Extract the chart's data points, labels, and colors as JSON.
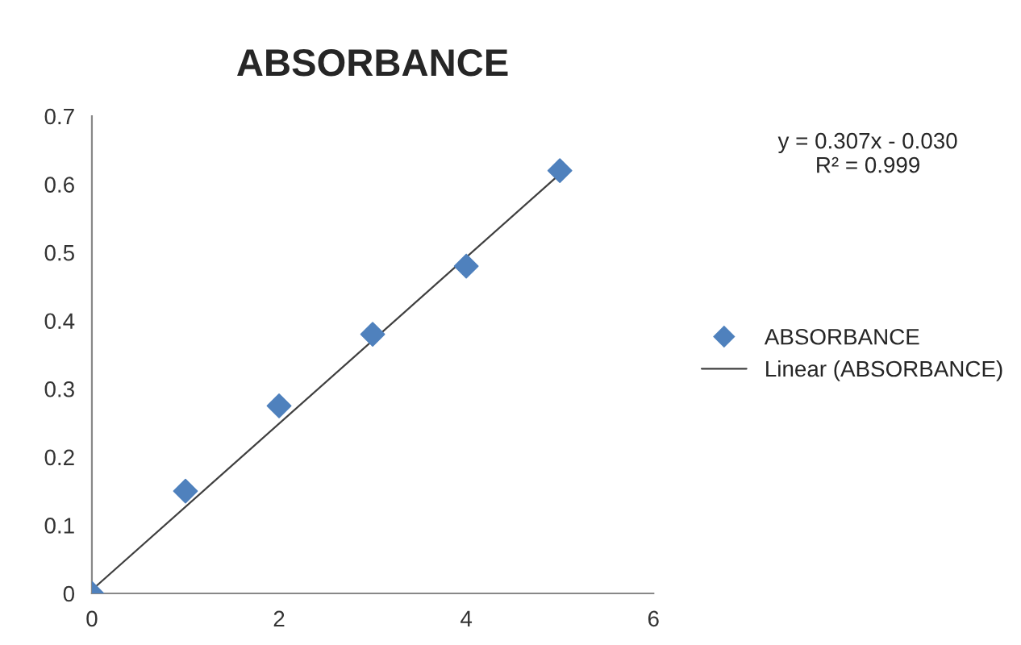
{
  "chart_data": {
    "type": "scatter",
    "title": "ABSORBANCE",
    "x": [
      0,
      1,
      2,
      3,
      4,
      5
    ],
    "series": [
      {
        "name": "ABSORBANCE",
        "color": "#4f81bd",
        "values": [
          0,
          0.15,
          0.275,
          0.38,
          0.48,
          0.62
        ],
        "marker": "diamond"
      },
      {
        "name": "Linear (ABSORBANCE)",
        "type": "line",
        "color": "#404040",
        "x": [
          0,
          5
        ],
        "values": [
          0.005,
          0.615
        ],
        "line_style": "solid"
      }
    ],
    "annotations": [
      "y = 0.307x - 0.030\nR² = 0.999"
    ],
    "xlim": [
      0,
      6
    ],
    "xticks": [
      0,
      2,
      4,
      6
    ],
    "ylim": [
      0,
      0.7
    ],
    "yticks": [
      0,
      0.1,
      0.2,
      0.3,
      0.4,
      0.5,
      0.6,
      0.7
    ],
    "grid": false,
    "legend": "right"
  }
}
